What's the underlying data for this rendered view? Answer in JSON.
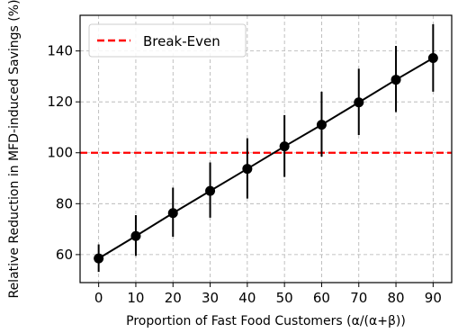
{
  "chart_data": {
    "type": "line",
    "xlabel": "Proportion of Fast Food Customers (α/(α+β))",
    "ylabel": "Relative Reduction in MFD-induced Savings (%)",
    "xlim": [
      -5,
      95
    ],
    "ylim": [
      49,
      154
    ],
    "xticks": [
      0,
      10,
      20,
      30,
      40,
      50,
      60,
      70,
      80,
      90
    ],
    "yticks": [
      60,
      80,
      100,
      120,
      140
    ],
    "grid": true,
    "legend_position": "upper-left",
    "series": [
      {
        "x": [
          0,
          10,
          20,
          30,
          40,
          50,
          60,
          70,
          80,
          90
        ],
        "y": [
          58.5,
          67.3,
          76.3,
          85.0,
          93.7,
          102.5,
          111.0,
          119.8,
          128.7,
          137.2
        ],
        "err_low": [
          53.2,
          59.5,
          67.0,
          74.5,
          82.0,
          90.5,
          98.5,
          107.0,
          116.0,
          124.0
        ],
        "err_high": [
          64.0,
          75.5,
          86.3,
          96.2,
          105.7,
          114.8,
          124.0,
          133.0,
          142.0,
          150.5
        ],
        "color": "#000000"
      }
    ],
    "reference_lines": [
      {
        "y": 100,
        "label": "Break-Even",
        "color": "#ff0000",
        "style": "dashed"
      }
    ]
  }
}
